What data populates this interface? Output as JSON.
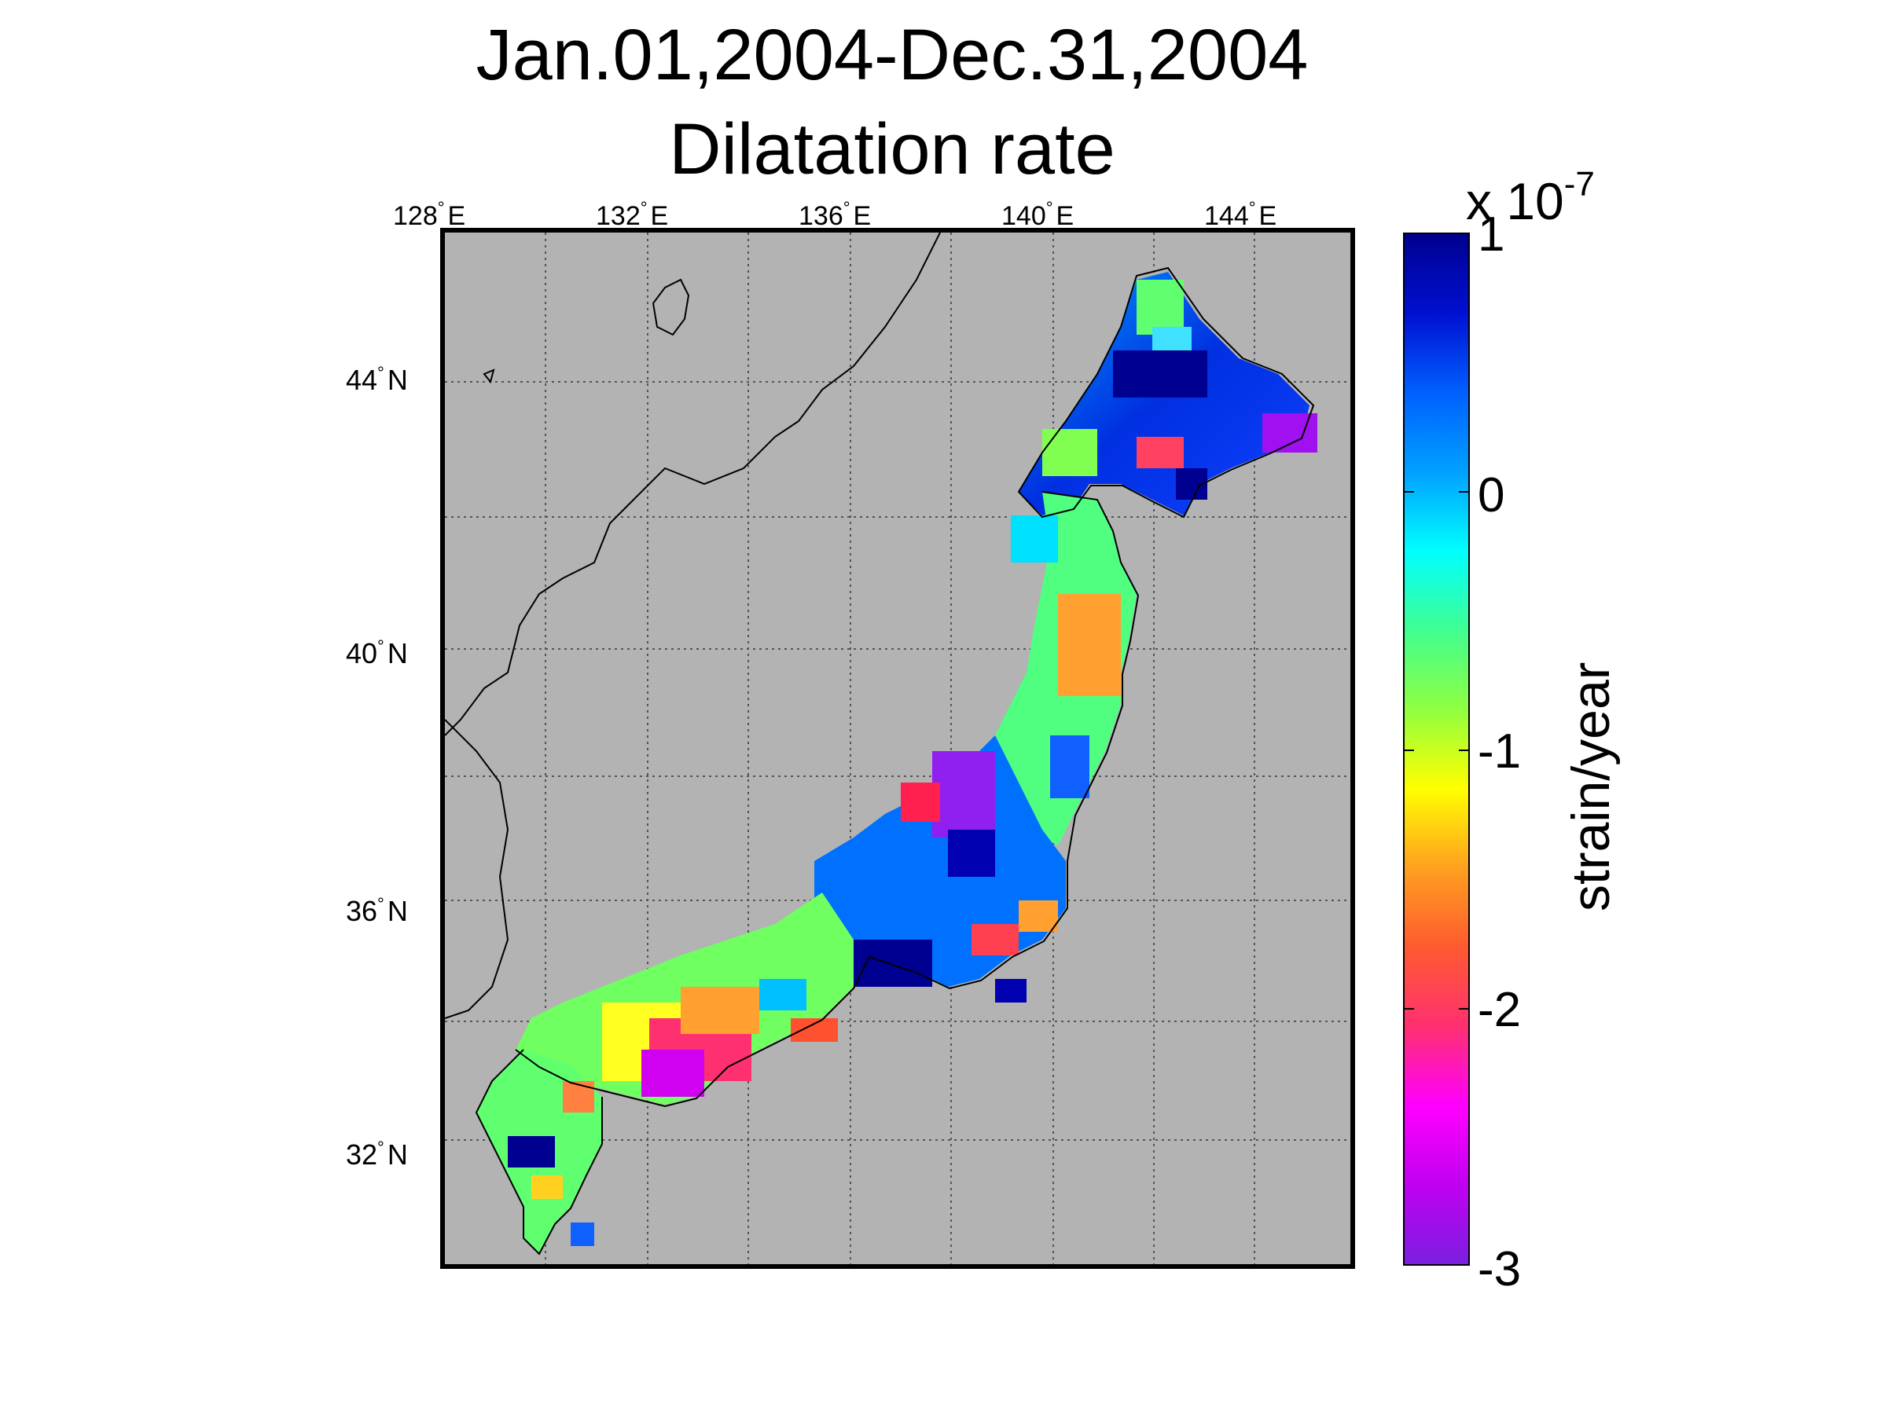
{
  "title_line1": "Jan.01,2004-Dec.31,2004",
  "title_line2": "Dilatation rate",
  "lon_ticks": [
    {
      "deg": "128",
      "hemi": "E"
    },
    {
      "deg": "132",
      "hemi": "E"
    },
    {
      "deg": "136",
      "hemi": "E"
    },
    {
      "deg": "140",
      "hemi": "E"
    },
    {
      "deg": "144",
      "hemi": "E"
    }
  ],
  "lat_ticks": [
    {
      "deg": "44",
      "hemi": "N"
    },
    {
      "deg": "40",
      "hemi": "N"
    },
    {
      "deg": "36",
      "hemi": "N"
    },
    {
      "deg": "32",
      "hemi": "N"
    }
  ],
  "degree_symbol": "°",
  "colorbar": {
    "scale_prefix": "x 10",
    "scale_exponent": "-7",
    "label": "strain/year",
    "ticks": [
      "1",
      "0",
      "-1",
      "-2",
      "-3"
    ],
    "range": [
      -3,
      1
    ],
    "colors": [
      "#7a1fe0",
      "#c000f0",
      "#ff00ff",
      "#ff3070",
      "#ff5a30",
      "#ffa020",
      "#ffff00",
      "#90ff40",
      "#40ff90",
      "#00ffff",
      "#00a0ff",
      "#0060ff",
      "#0010d0",
      "#000090"
    ]
  },
  "map": {
    "land_color": "#b3b3b3",
    "coast_color": "#000000",
    "grid_style": "dotted"
  }
}
